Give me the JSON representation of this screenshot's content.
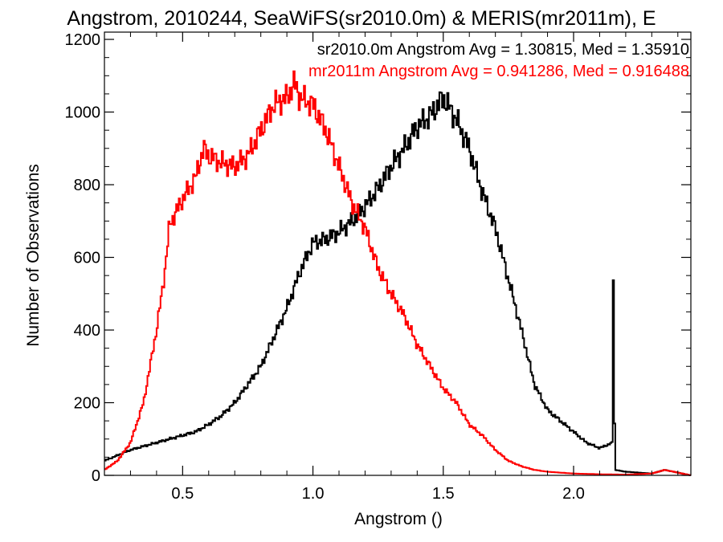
{
  "chart_data": {
    "type": "line",
    "title": "Angstrom, 2010244, SeaWiFS(sr2010.0m) & MERIS(mr2011m), E",
    "xlabel": "Angstrom ()",
    "ylabel": "Number of Observations",
    "xlim": [
      0.2,
      2.45
    ],
    "ylim": [
      0,
      1220
    ],
    "xticks": [
      0.5,
      1.0,
      1.5,
      2.0
    ],
    "xtick_labels": [
      "0.5",
      "1.0",
      "1.5",
      "2.0"
    ],
    "yticks": [
      0,
      200,
      400,
      600,
      800,
      1000,
      1200
    ],
    "ytick_labels": [
      "0",
      "200",
      "400",
      "600",
      "800",
      "1000",
      "1200"
    ],
    "grid": false,
    "legend_position": "top-right",
    "step": "histogram",
    "series": [
      {
        "name": "sr2010.0m",
        "legend": "sr2010.0m Angstrom Avg = 1.30815, Med = 1.35910",
        "color": "#000000",
        "points": [
          [
            0.2,
            40
          ],
          [
            0.25,
            55
          ],
          [
            0.3,
            70
          ],
          [
            0.35,
            80
          ],
          [
            0.4,
            90
          ],
          [
            0.45,
            100
          ],
          [
            0.5,
            110
          ],
          [
            0.55,
            120
          ],
          [
            0.6,
            140
          ],
          [
            0.65,
            165
          ],
          [
            0.7,
            200
          ],
          [
            0.75,
            250
          ],
          [
            0.8,
            300
          ],
          [
            0.85,
            380
          ],
          [
            0.9,
            460
          ],
          [
            0.95,
            560
          ],
          [
            1.0,
            640
          ],
          [
            1.05,
            650
          ],
          [
            1.1,
            670
          ],
          [
            1.15,
            700
          ],
          [
            1.2,
            740
          ],
          [
            1.25,
            790
          ],
          [
            1.3,
            850
          ],
          [
            1.35,
            900
          ],
          [
            1.4,
            960
          ],
          [
            1.45,
            990
          ],
          [
            1.5,
            1040
          ],
          [
            1.55,
            980
          ],
          [
            1.6,
            900
          ],
          [
            1.62,
            850
          ],
          [
            1.65,
            780
          ],
          [
            1.7,
            680
          ],
          [
            1.75,
            540
          ],
          [
            1.8,
            400
          ],
          [
            1.85,
            250
          ],
          [
            1.9,
            180
          ],
          [
            1.95,
            150
          ],
          [
            2.0,
            120
          ],
          [
            2.05,
            90
          ],
          [
            2.1,
            75
          ],
          [
            2.15,
            90
          ],
          [
            2.152,
            550
          ],
          [
            2.155,
            550
          ],
          [
            2.158,
            60
          ],
          [
            2.16,
            15
          ],
          [
            2.2,
            10
          ],
          [
            2.3,
            5
          ],
          [
            2.35,
            15
          ],
          [
            2.45,
            0
          ]
        ]
      },
      {
        "name": "mr2011m",
        "legend": "mr2011m Angstrom Avg = 0.941286, Med = 0.916488",
        "color": "#ff0000",
        "points": [
          [
            0.2,
            15
          ],
          [
            0.25,
            40
          ],
          [
            0.3,
            90
          ],
          [
            0.35,
            200
          ],
          [
            0.4,
            400
          ],
          [
            0.43,
            550
          ],
          [
            0.45,
            690
          ],
          [
            0.5,
            760
          ],
          [
            0.55,
            820
          ],
          [
            0.58,
            900
          ],
          [
            0.6,
            880
          ],
          [
            0.65,
            860
          ],
          [
            0.7,
            850
          ],
          [
            0.75,
            880
          ],
          [
            0.8,
            950
          ],
          [
            0.85,
            1020
          ],
          [
            0.9,
            1040
          ],
          [
            0.93,
            1080
          ],
          [
            0.95,
            1040
          ],
          [
            1.0,
            1020
          ],
          [
            1.05,
            950
          ],
          [
            1.1,
            850
          ],
          [
            1.15,
            750
          ],
          [
            1.2,
            680
          ],
          [
            1.25,
            570
          ],
          [
            1.3,
            500
          ],
          [
            1.35,
            440
          ],
          [
            1.4,
            360
          ],
          [
            1.45,
            300
          ],
          [
            1.5,
            240
          ],
          [
            1.55,
            200
          ],
          [
            1.6,
            140
          ],
          [
            1.65,
            110
          ],
          [
            1.7,
            70
          ],
          [
            1.75,
            40
          ],
          [
            1.8,
            25
          ],
          [
            1.85,
            15
          ],
          [
            1.9,
            10
          ],
          [
            2.0,
            5
          ],
          [
            2.1,
            3
          ],
          [
            2.2,
            2
          ],
          [
            2.3,
            5
          ],
          [
            2.35,
            15
          ],
          [
            2.45,
            0
          ]
        ]
      }
    ]
  }
}
